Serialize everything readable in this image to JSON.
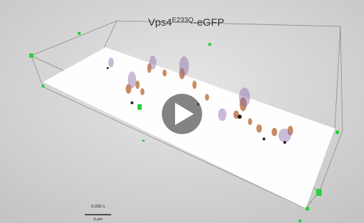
{
  "title": {
    "base": "Vps4",
    "superscript": "E233Q",
    "suffix": "-eGFP"
  },
  "timestamp": "0.000 s",
  "scale_bar": "6 µm"
}
